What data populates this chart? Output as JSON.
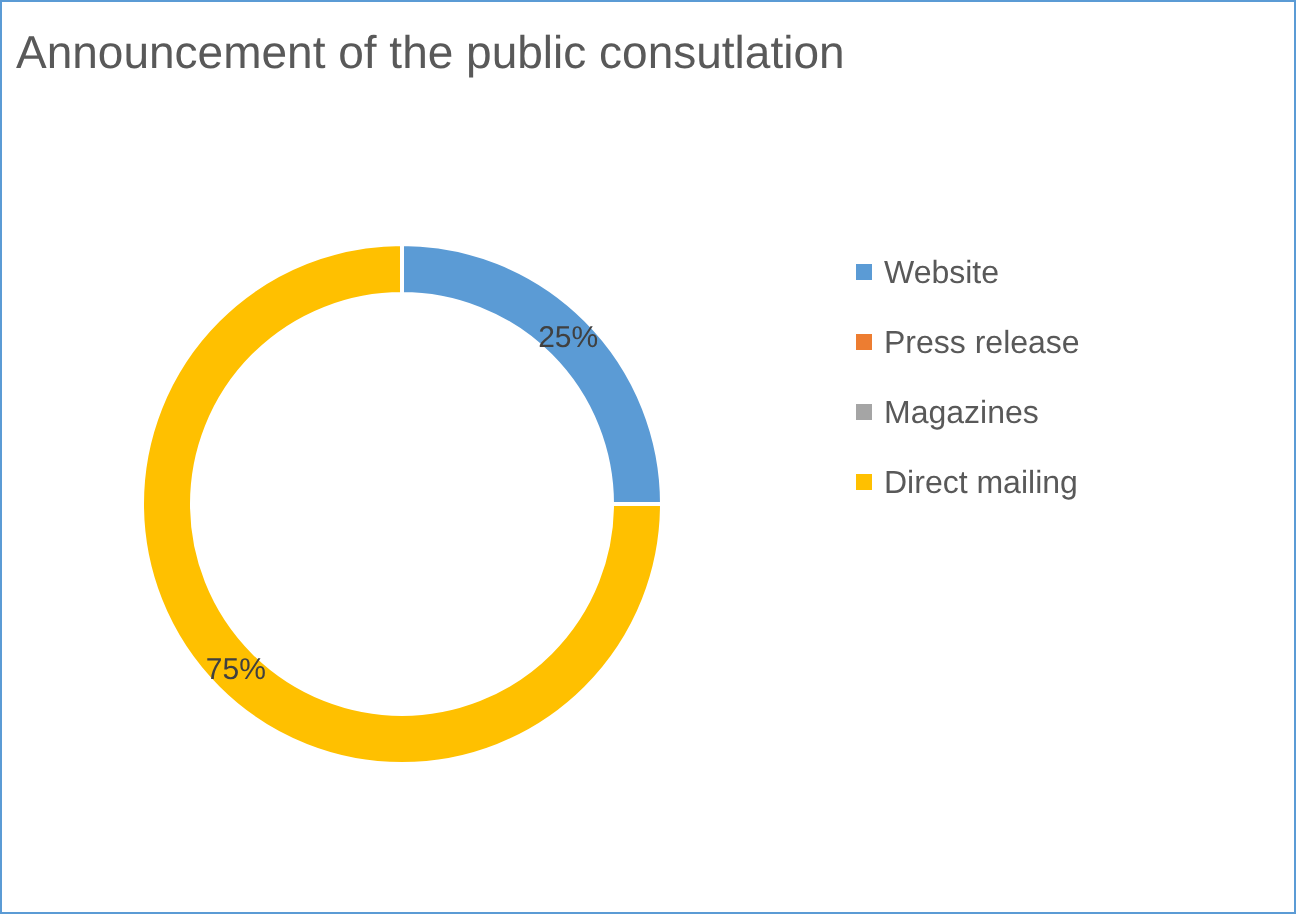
{
  "chart_data": {
    "type": "donut",
    "title": "Announcement  of the public consutlation",
    "categories": [
      "Website",
      "Press release",
      "Magazines",
      "Direct mailing"
    ],
    "values": [
      25,
      0,
      0,
      75
    ],
    "colors": [
      "#5b9bd5",
      "#ed7d31",
      "#a5a5a5",
      "#ffc000"
    ],
    "value_labels": [
      "25%",
      null,
      null,
      "75%"
    ],
    "legend": "right"
  }
}
